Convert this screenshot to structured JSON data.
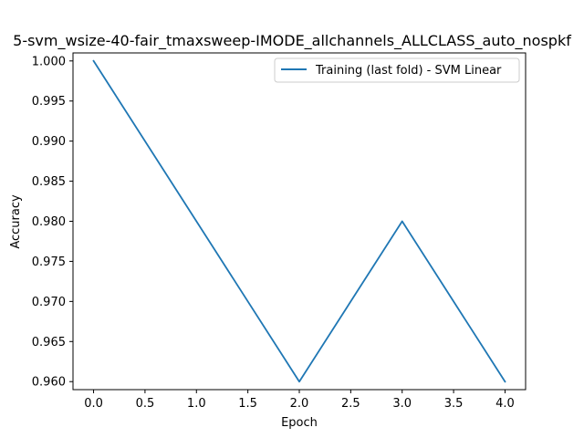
{
  "chart_data": {
    "type": "line",
    "title": "5-svm_wsize-40-fair_tmaxsweep-IMODE_allchannels_ALLCLASS_auto_nospkf",
    "xlabel": "Epoch",
    "ylabel": "Accuracy",
    "xlim": [
      -0.2,
      4.2
    ],
    "ylim": [
      0.959,
      1.001
    ],
    "xticks": [
      0.0,
      0.5,
      1.0,
      1.5,
      2.0,
      2.5,
      3.0,
      3.5,
      4.0
    ],
    "xtick_labels": [
      "0.0",
      "0.5",
      "1.0",
      "1.5",
      "2.0",
      "2.5",
      "3.0",
      "3.5",
      "4.0"
    ],
    "yticks": [
      0.96,
      0.965,
      0.97,
      0.975,
      0.98,
      0.985,
      0.99,
      0.995,
      1.0
    ],
    "ytick_labels": [
      "0.960",
      "0.965",
      "0.970",
      "0.975",
      "0.980",
      "0.985",
      "0.990",
      "0.995",
      "1.000"
    ],
    "grid": false,
    "legend_position": "top-right",
    "series": [
      {
        "name": "Training (last fold) - SVM Linear",
        "color": "#1f77b4",
        "x": [
          0,
          1,
          2,
          3,
          4
        ],
        "y": [
          1.0,
          0.98,
          0.96,
          0.98,
          0.96
        ]
      }
    ]
  }
}
